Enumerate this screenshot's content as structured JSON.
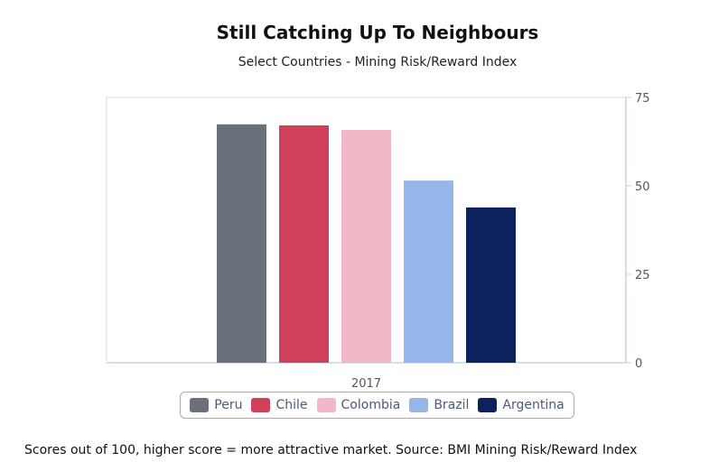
{
  "chart_data": {
    "type": "bar",
    "title": "Still Catching Up To Neighbours",
    "subtitle": "Select Countries - Mining Risk/Reward Index",
    "categories": [
      "2017"
    ],
    "series": [
      {
        "name": "Peru",
        "values": [
          67.4
        ],
        "color": "#6a717a"
      },
      {
        "name": "Chile",
        "values": [
          67.1
        ],
        "color": "#cf405b"
      },
      {
        "name": "Colombia",
        "values": [
          65.8
        ],
        "color": "#f2b8c8"
      },
      {
        "name": "Brazil",
        "values": [
          51.5
        ],
        "color": "#94b6e8"
      },
      {
        "name": "Argentina",
        "values": [
          43.9
        ],
        "color": "#0d215c"
      }
    ],
    "ylim": [
      0,
      75
    ],
    "yticks": [
      "0",
      "25",
      "50",
      "75"
    ],
    "ytick_values": [
      0,
      25,
      50,
      75
    ],
    "y_axis_side": "right",
    "legend_position": "bottom",
    "footnote": "Scores out of 100, higher score = more attractive market. Source: BMI Mining Risk/Reward Index"
  }
}
